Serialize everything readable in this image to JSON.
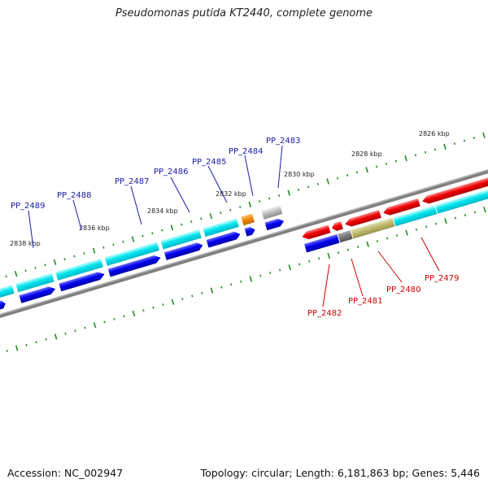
{
  "title": "Pseudomonas putida KT2440, complete genome",
  "footer": {
    "accession": "Accession: NC_002947",
    "topology": "Topology: circular; Length: 6,181,863 bp; Genes: 5,446"
  },
  "colors": {
    "backbone": "#808080",
    "cds_plus": "#00e5ee",
    "cds_minus": "#0000ee",
    "cds_red": "#ee0000",
    "ticks": "#228b22",
    "label_blue": "#1a1aa6",
    "label_red": "#cc0000"
  },
  "kbp_labels": [
    "2826 kbp",
    "2828 kbp",
    "2830 kbp",
    "2832 kbp",
    "2834 kbp",
    "2836 kbp",
    "2838 kbp"
  ],
  "genes_upper": [
    "PP_2489",
    "PP_2488",
    "PP_2487",
    "PP_2486",
    "PP_2485",
    "PP_2484",
    "PP_2483"
  ],
  "genes_lower": [
    "PP_2482",
    "PP_2481",
    "PP_2480",
    "PP_2479"
  ]
}
